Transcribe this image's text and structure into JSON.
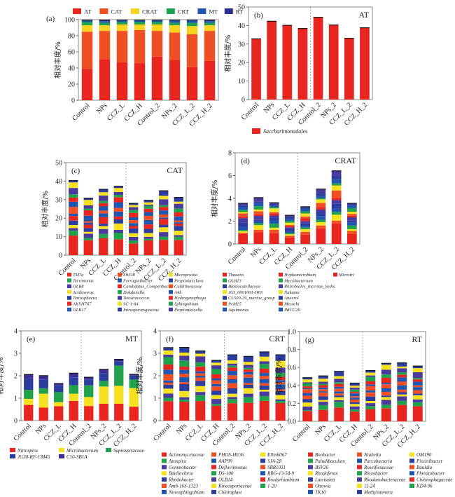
{
  "ylabel": "相对丰度/%",
  "categories": [
    "Control",
    "NPs",
    "CCZ_L",
    "CCZ_H",
    "Control_2",
    "NPs_2",
    "CCZ_L_2",
    "CCZ_H_2"
  ],
  "chart_data": [
    {
      "id": "a",
      "tag": "(a)",
      "title": "",
      "type": "bar",
      "stacked": true,
      "ylim": [
        0,
        100
      ],
      "yticks": [
        0,
        20,
        40,
        60,
        80,
        100
      ],
      "legend_position": "top",
      "categories": [
        "Control",
        "NPs",
        "CCZ_L",
        "CCZ_H",
        "Control_2",
        "NPs_2",
        "CCZ_L_2",
        "CCZ_H_2"
      ],
      "series": [
        {
          "name": "AT",
          "color": "#e8251f",
          "values": [
            39,
            51,
            47,
            46,
            54,
            50,
            41,
            49
          ]
        },
        {
          "name": "CAT",
          "color": "#f04e23",
          "values": [
            46,
            35,
            39,
            41,
            32,
            34,
            41,
            37
          ]
        },
        {
          "name": "CRAT",
          "color": "#f5d31f",
          "values": [
            8,
            7,
            8,
            7,
            8,
            9,
            10,
            7
          ]
        },
        {
          "name": "CRT",
          "color": "#1fa24a",
          "values": [
            4,
            3,
            3,
            3,
            3,
            3,
            4,
            3
          ]
        },
        {
          "name": "MT",
          "color": "#1f56b0",
          "values": [
            2,
            2,
            2,
            2,
            2,
            3,
            3,
            2
          ]
        },
        {
          "name": "RT",
          "color": "#2b2f8f",
          "values": [
            1,
            2,
            1,
            1,
            1,
            1,
            1,
            2
          ]
        }
      ]
    },
    {
      "id": "b",
      "tag": "(b)",
      "title": "AT",
      "type": "bar",
      "stacked": true,
      "ylim": [
        0,
        50
      ],
      "yticks": [
        0,
        10,
        20,
        30,
        40,
        50
      ],
      "legend_position": "bottom-left",
      "categories": [
        "Control",
        "NPs",
        "CCZ_L",
        "CCZ_H",
        "Control_2",
        "NPs_2",
        "CCZ_L_2",
        "CCZ_H_2"
      ],
      "series": [
        {
          "name": "Saccharimonadales",
          "color": "#e8251f",
          "values": [
            33,
            42.5,
            40.3,
            38.6,
            44.7,
            40.5,
            33.3,
            39
          ]
        }
      ]
    },
    {
      "id": "c",
      "tag": "(c)",
      "title": "CAT",
      "type": "bar",
      "stacked": true,
      "ylim": [
        0,
        50
      ],
      "yticks": [
        0,
        10,
        20,
        30,
        40,
        50
      ],
      "totals": [
        40.5,
        31,
        35.8,
        37.4,
        28.2,
        29.8,
        35,
        31.4
      ],
      "legend_position": "bottom",
      "categories": [
        "Control",
        "NPs",
        "CCZ_L",
        "CCZ_H",
        "Control_2",
        "NPs_2",
        "CCZ_L_2",
        "CCZ_H_2"
      ],
      "series": [
        {
          "name": "TM7a",
          "color": "#e8251f"
        },
        {
          "name": "Terrimonas",
          "color": "#1fa24a"
        },
        {
          "name": "OLB8",
          "color": "#4b3a9e"
        },
        {
          "name": "Acidovorax",
          "color": "#f5e11f"
        },
        {
          "name": "Tetrasphaera",
          "color": "#2b3d9e"
        },
        {
          "name": "AKYH767",
          "color": "#e8251f"
        },
        {
          "name": "OLB17",
          "color": "#1f56b0"
        },
        {
          "name": "LWO8",
          "color": "#f04e23"
        },
        {
          "name": "Ferruginibacter",
          "color": "#1f56b0"
        },
        {
          "name": "Candidatus_Competibacter",
          "color": "#e8251f"
        },
        {
          "name": "Dokdonella",
          "color": "#1fa24a"
        },
        {
          "name": "Tessaracoccus",
          "color": "#4b3a9e"
        },
        {
          "name": "SC-1-84",
          "color": "#f5e11f"
        },
        {
          "name": "Intrasporangiaceae",
          "color": "#2b3d9e"
        },
        {
          "name": "Micropruina",
          "color": "#f5e11f"
        },
        {
          "name": "Propioniciclava",
          "color": "#2b3d9e"
        },
        {
          "name": "Caldilineaceae",
          "color": "#f04e23"
        },
        {
          "name": "A4b",
          "color": "#1f56b0"
        },
        {
          "name": "Hydrogenophaga",
          "color": "#e8251f"
        },
        {
          "name": "Sphingobium",
          "color": "#1fa24a"
        },
        {
          "name": "Propionicicella",
          "color": "#4b3a9e"
        },
        {
          "name": "Thauera",
          "color": "#e8251f"
        },
        {
          "name": "OLB13",
          "color": "#1fa24a"
        },
        {
          "name": "Blastocatellaceae",
          "color": "#2b3d9e"
        },
        {
          "name": "JGI_0001001-H03",
          "color": "#f5e11f"
        },
        {
          "name": "CL500-29_marine_group",
          "color": "#2b3d9e"
        },
        {
          "name": "PeM15",
          "color": "#f04e23"
        },
        {
          "name": "Aquimonas",
          "color": "#1f56b0"
        },
        {
          "name": "Hyphomicrobium",
          "color": "#e8251f"
        },
        {
          "name": "Mycobacterium",
          "color": "#1fa24a"
        },
        {
          "name": "Rhizobiales_Incertae_Sedis",
          "color": "#4b3a9e"
        },
        {
          "name": "Nakamu",
          "color": "#f5e11f"
        },
        {
          "name": "Anaerol",
          "color": "#2b3d9e"
        },
        {
          "name": "Mesorhi",
          "color": "#f04e23"
        },
        {
          "name": "IMCC26",
          "color": "#1f56b0"
        },
        {
          "name": "Microtri",
          "color": "#e8251f"
        }
      ]
    },
    {
      "id": "d",
      "tag": "(d)",
      "title": "CRAT",
      "type": "bar",
      "stacked": true,
      "ylim": [
        0,
        8
      ],
      "yticks": [
        0,
        2,
        4,
        6,
        8
      ],
      "totals": [
        3.6,
        4.1,
        3.65,
        2.55,
        3.3,
        4.85,
        6.45,
        3.6
      ],
      "legend_position": "bottom (shared with c)",
      "categories": [
        "Control",
        "NPs",
        "CCZ_L",
        "CCZ_H",
        "Control_2",
        "NPs_2",
        "CCZ_L_2",
        "CCZ_H_2"
      ]
    },
    {
      "id": "e",
      "tag": "(e)",
      "title": "MT",
      "type": "bar",
      "stacked": true,
      "ylim": [
        0,
        4
      ],
      "yticks": [
        0,
        1,
        2,
        3,
        4
      ],
      "legend_position": "bottom",
      "categories": [
        "Control",
        "NPs",
        "CCZ_L",
        "CCZ_H",
        "Control_2",
        "NPs_2",
        "CCZ_L_2",
        "CCZ_H_2"
      ],
      "series": [
        {
          "name": "Nitrospira",
          "color": "#e8251f",
          "values": [
            0.7,
            0.58,
            0.64,
            0.88,
            0.65,
            0.75,
            0.75,
            0.62
          ]
        },
        {
          "name": "Microbacterium",
          "color": "#f5e11f",
          "values": [
            0.27,
            0.62,
            0.18,
            0.32,
            0.4,
            0.77,
            0.8,
            0.83
          ]
        },
        {
          "name": "Saprospiraceae",
          "color": "#1fa24a",
          "values": [
            0.4,
            0.24,
            0.45,
            0.38,
            0.52,
            0.25,
            0.9,
            0.38
          ]
        },
        {
          "name": "JG30-KF-CM45",
          "color": "#2b3d9e",
          "values": [
            0.5,
            0.38,
            0.3,
            0.35,
            0.25,
            0.35,
            0.2,
            0.18
          ]
        },
        {
          "name": "C10-SB1A",
          "color": "#3b2f96",
          "values": [
            0.2,
            0.2,
            0.1,
            0.2,
            0.13,
            0.18,
            0.1,
            0.07
          ]
        }
      ]
    },
    {
      "id": "f",
      "tag": "(f)",
      "title": "CRT",
      "type": "bar",
      "stacked": true,
      "ylim": [
        0,
        4
      ],
      "yticks": [
        0,
        1,
        2,
        3,
        4
      ],
      "totals": [
        3.27,
        3.28,
        3.12,
        2.7,
        2.95,
        2.88,
        3.08,
        2.95
      ],
      "legend_position": "bottom",
      "categories": [
        "Control",
        "NPs",
        "CCZ_L",
        "CCZ_H",
        "Control_2",
        "NPs_2",
        "CCZ_L_2",
        "CCZ_H_2"
      ],
      "series": [
        {
          "name": "Actinomycetaceae",
          "color": "#e8251f"
        },
        {
          "name": "Azospira",
          "color": "#1fa24a"
        },
        {
          "name": "Gemmobacter",
          "color": "#4b3a9e"
        },
        {
          "name": "Bdellovibrio",
          "color": "#f5e11f"
        },
        {
          "name": "Rhodobacter",
          "color": "#2b3d9e"
        },
        {
          "name": "Amb-16S-1323",
          "color": "#f04e23"
        },
        {
          "name": "Novosphingobium",
          "color": "#1f56b0"
        },
        {
          "name": "PHOS-HE36",
          "color": "#f04e23"
        },
        {
          "name": "AAP99",
          "color": "#1f56b0"
        },
        {
          "name": "Defluviimonas",
          "color": "#e8251f"
        },
        {
          "name": "DS-100",
          "color": "#1fa24a"
        },
        {
          "name": "OLB14",
          "color": "#4b3a9e"
        },
        {
          "name": "Kineosporiaceae",
          "color": "#f5e11f"
        },
        {
          "name": "Chloroplast",
          "color": "#2b3d9e"
        },
        {
          "name": "Ellin6067",
          "color": "#f5e11f"
        },
        {
          "name": "SJA-28",
          "color": "#2b3d9e"
        },
        {
          "name": "SBR1031",
          "color": "#f04e23"
        },
        {
          "name": "RBG-13-54-9",
          "color": "#1f56b0"
        },
        {
          "name": "Bradyrhizobium",
          "color": "#e8251f"
        },
        {
          "name": "1-20",
          "color": "#1fa24a"
        }
      ]
    },
    {
      "id": "g",
      "tag": "(g)",
      "title": "RT",
      "type": "bar",
      "stacked": true,
      "ylim": [
        0,
        1.0
      ],
      "yticks": [
        0,
        0.2,
        0.4,
        0.6,
        0.8,
        1.0
      ],
      "totals": [
        0.49,
        0.51,
        0.56,
        0.43,
        0.57,
        0.65,
        0.655,
        0.62
      ],
      "legend_position": "bottom",
      "categories": [
        "Control",
        "NPs",
        "CCZ_L",
        "CCZ_H",
        "Control_2",
        "NPs_2",
        "CCZ_L_2",
        "CCZ_H_2"
      ],
      "series": [
        {
          "name": "Bnobacter",
          "color": "#e8251f"
        },
        {
          "name": "Paludibaculum",
          "color": "#1fa24a"
        },
        {
          "name": "BSV26",
          "color": "#4b3a9e"
        },
        {
          "name": "Rhodoferax",
          "color": "#f5e11f"
        },
        {
          "name": "Luteitalea",
          "color": "#2b3d9e"
        },
        {
          "name": "Ottowia",
          "color": "#f04e23"
        },
        {
          "name": "TK10",
          "color": "#1f56b0"
        },
        {
          "name": "Niabella",
          "color": "#f04e23"
        },
        {
          "name": "Parcubacteria",
          "color": "#1f56b0"
        },
        {
          "name": "Roseiflexaceae",
          "color": "#e8251f"
        },
        {
          "name": "Rhizobacter",
          "color": "#1fa24a"
        },
        {
          "name": "Rhodanobacteraceae",
          "color": "#4b3a9e"
        },
        {
          "name": "11-24",
          "color": "#f5e11f"
        },
        {
          "name": "Methylotenera",
          "color": "#2b3d9e"
        },
        {
          "name": "OM190",
          "color": "#f5e11f"
        },
        {
          "name": "Piscinibacter",
          "color": "#2b3d9e"
        },
        {
          "name": "Bauldia",
          "color": "#f04e23"
        },
        {
          "name": "Phreatobacter",
          "color": "#1f56b0"
        },
        {
          "name": "Chitinophagaceae",
          "color": "#e8251f"
        },
        {
          "name": "KD4-96",
          "color": "#1fa24a"
        }
      ]
    }
  ]
}
